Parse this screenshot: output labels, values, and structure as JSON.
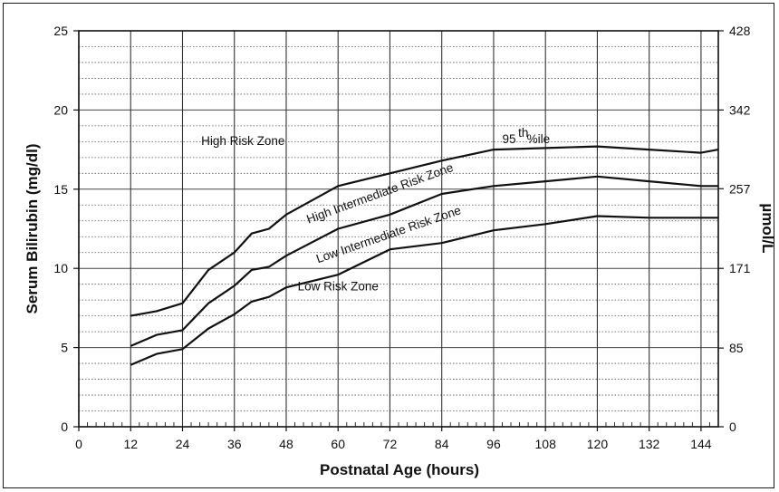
{
  "chart_data": {
    "type": "line",
    "title": "",
    "xlabel": "Postnatal Age (hours)",
    "ylabel": "Serum Bilirubin (mg/dl)",
    "y2label": "µmol/L",
    "xlim": [
      0,
      148
    ],
    "ylim": [
      0,
      25
    ],
    "x_ticks": [
      0,
      12,
      24,
      36,
      48,
      60,
      72,
      84,
      96,
      108,
      120,
      132,
      144
    ],
    "y_ticks": [
      0,
      5,
      10,
      15,
      20,
      25
    ],
    "y2_ticks": [
      {
        "value": 0,
        "label": "0"
      },
      {
        "value": 4.97,
        "label": "85"
      },
      {
        "value": 10,
        "label": "171"
      },
      {
        "value": 15.03,
        "label": "257"
      },
      {
        "value": 20,
        "label": "342"
      },
      {
        "value": 25,
        "label": "428"
      }
    ],
    "grid": true,
    "series": [
      {
        "name": "95 th%ile",
        "x": [
          12,
          18,
          24,
          30,
          36,
          40,
          44,
          48,
          60,
          72,
          84,
          96,
          108,
          120,
          132,
          144,
          148
        ],
        "y": [
          7.0,
          7.3,
          7.8,
          9.9,
          11.0,
          12.2,
          12.5,
          13.4,
          15.2,
          16.0,
          16.8,
          17.5,
          17.6,
          17.7,
          17.5,
          17.3,
          17.5
        ]
      },
      {
        "name": "",
        "x": [
          12,
          18,
          24,
          30,
          36,
          40,
          44,
          48,
          60,
          72,
          84,
          96,
          108,
          120,
          132,
          144,
          148
        ],
        "y": [
          5.1,
          5.8,
          6.1,
          7.8,
          8.9,
          9.9,
          10.1,
          10.8,
          12.5,
          13.4,
          14.7,
          15.2,
          15.5,
          15.8,
          15.5,
          15.2,
          15.2
        ]
      },
      {
        "name": "",
        "x": [
          12,
          18,
          24,
          30,
          36,
          40,
          44,
          48,
          60,
          72,
          84,
          96,
          108,
          120,
          132,
          144,
          148
        ],
        "y": [
          3.9,
          4.6,
          4.9,
          6.2,
          7.1,
          7.9,
          8.2,
          8.8,
          9.6,
          11.2,
          11.6,
          12.4,
          12.8,
          13.3,
          13.2,
          13.2,
          13.2
        ]
      }
    ],
    "annotations": [
      {
        "text": "High Risk Zone",
        "x": 38,
        "y": 17.8
      },
      {
        "text": "95",
        "x": 98,
        "y": 17.9
      },
      {
        "text": "th",
        "x": 101.7,
        "y": 18.3
      },
      {
        "text": "%ile",
        "x": 103.7,
        "y": 17.9
      },
      {
        "text": "High Intermediate Risk Zone",
        "x": 70,
        "y": 14.5,
        "angle": -20
      },
      {
        "text": "Low Intermediate Risk Zone",
        "x": 72,
        "y": 11.9,
        "angle": -19
      },
      {
        "text": "Low Risk Zone",
        "x": 60,
        "y": 8.6
      }
    ]
  }
}
